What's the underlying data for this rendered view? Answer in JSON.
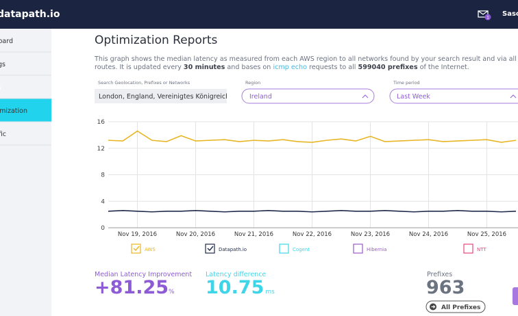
{
  "header": {
    "logo": "datapath.io",
    "notifications": "1",
    "user": "Sasch"
  },
  "sidebar": {
    "items": [
      "Dashboard",
      "Settings",
      "Reports",
      "Optimization",
      "Traffic"
    ],
    "active": 2
  },
  "page": {
    "title": "Optimization Reports",
    "description_line1": "This graph shows the median latency as measured from each AWS region to all networks found by your search result and via all available",
    "description_line2": [
      "routes. It is updated every ",
      "30 minutes",
      " and bases on ",
      "icmp echo",
      " requests to all ",
      "599040 prefixes",
      " of the Internet."
    ]
  },
  "form": {
    "search_label": "Search Geolocation, Prefixes or Networks",
    "search_value": "London, England, Vereinigtes Königreich",
    "region_label": "Region",
    "region_value": "Ireland",
    "period_label": "Time period",
    "period_value": "Last Week"
  },
  "chart_data": {
    "type": "line",
    "categories": [
      null,
      null,
      "Nov 19, 2016",
      null,
      null,
      null,
      "Nov 20, 2016",
      null,
      null,
      null,
      "Nov 21, 2016",
      null,
      null,
      null,
      "Nov 22, 2016",
      null,
      null,
      null,
      "Nov 23, 2016",
      null,
      null,
      null,
      "Nov 24, 2016",
      null,
      null,
      null,
      "Nov 25, 2016",
      null,
      null
    ],
    "series": [
      {
        "name": "AWS",
        "color": "#e8b523",
        "values": [
          13.2,
          13.1,
          14.6,
          13.2,
          13.0,
          13.9,
          13.1,
          13.2,
          13.3,
          13.0,
          13.2,
          13.1,
          13.3,
          13.0,
          12.9,
          13.2,
          13.4,
          13.1,
          13.8,
          13.0,
          13.1,
          13.2,
          13.3,
          13.0,
          13.1,
          13.2,
          13.3,
          12.9,
          13.2
        ]
      },
      {
        "name": "Datapath.io",
        "color": "#1f2a4a",
        "values": [
          2.5,
          2.6,
          2.5,
          2.4,
          2.5,
          2.5,
          2.6,
          2.5,
          2.4,
          2.5,
          2.5,
          2.6,
          2.5,
          2.5,
          2.4,
          2.5,
          2.6,
          2.5,
          2.5,
          2.6,
          2.5,
          2.4,
          2.5,
          2.5,
          2.6,
          2.5,
          2.5,
          2.4,
          2.5
        ]
      }
    ],
    "unselected_series": [
      {
        "name": "Cogent",
        "color": "#3fd5e8"
      },
      {
        "name": "Hibernia",
        "color": "#9b59c9"
      },
      {
        "name": "NTT",
        "color": "#e8457a"
      }
    ],
    "ylim": [
      0,
      16
    ],
    "yticks": [
      0,
      4,
      8,
      12,
      16
    ],
    "grid": true
  },
  "stats": {
    "improvement_label": "Median Latency Improvement",
    "improvement_value": "+81.25",
    "improvement_unit": "%",
    "difference_label": "Latency difference",
    "difference_value": "10.75",
    "difference_unit": "ms",
    "prefixes_label": "Prefixes",
    "prefixes_value": "963",
    "prefixes_button": "All Prefixes"
  }
}
